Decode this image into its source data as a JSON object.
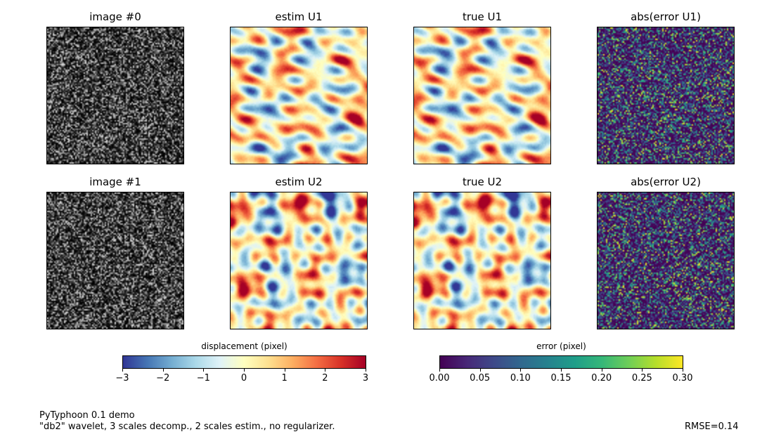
{
  "chart_data": {
    "type": "heatmap",
    "panels": [
      {
        "title": "image #0",
        "kind": "gray"
      },
      {
        "title": "estim U1",
        "kind": "field"
      },
      {
        "title": "true U1",
        "kind": "field"
      },
      {
        "title": "abs(error U1)",
        "kind": "error"
      },
      {
        "title": "image #1",
        "kind": "gray"
      },
      {
        "title": "estim U2",
        "kind": "field"
      },
      {
        "title": "true U2",
        "kind": "field"
      },
      {
        "title": "abs(error U2)",
        "kind": "error"
      }
    ],
    "colorbars": [
      {
        "label": "displacement (pixel)",
        "colormap": "RdYlBu_r",
        "range": [
          -3,
          3
        ],
        "ticks": [
          "−3",
          "−2",
          "−1",
          "0",
          "1",
          "2",
          "3"
        ]
      },
      {
        "label": "error (pixel)",
        "colormap": "viridis",
        "range": [
          0,
          0.3
        ],
        "ticks": [
          "0.00",
          "0.05",
          "0.10",
          "0.15",
          "0.20",
          "0.25",
          "0.30"
        ]
      }
    ]
  },
  "footer": {
    "line1": "PyTyphoon 0.1 demo",
    "line2": "\"db2\" wavelet, 3 scales decomp., 2 scales estim., no regularizer.",
    "rmse": "RMSE=0.14"
  }
}
